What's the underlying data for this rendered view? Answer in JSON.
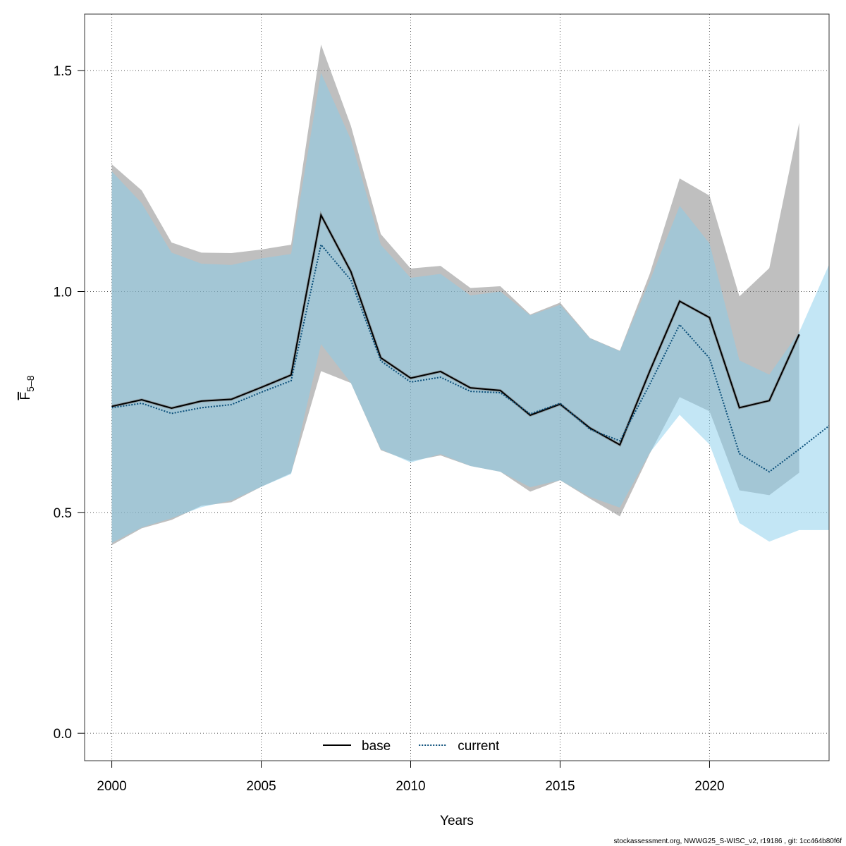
{
  "chart_data": {
    "type": "line",
    "xlabel": "Years",
    "ylabel": {
      "main": "F",
      "sub": "5–8"
    },
    "footer": "stockassessment.org, NWWG25_S-WISC_v2, r19186 , git: 1cc464b80f6f",
    "x": [
      2000,
      2001,
      2002,
      2003,
      2004,
      2005,
      2006,
      2007,
      2008,
      2009,
      2010,
      2011,
      2012,
      2013,
      2014,
      2015,
      2016,
      2017,
      2018,
      2019,
      2020,
      2021,
      2022,
      2023,
      2024
    ],
    "series": [
      {
        "name": "base",
        "color": "#000000",
        "band_color": "#808080",
        "dash": "solid",
        "values": [
          0.74,
          0.755,
          0.736,
          0.752,
          0.756,
          0.783,
          0.811,
          1.173,
          1.045,
          0.85,
          0.804,
          0.819,
          0.782,
          0.776,
          0.72,
          0.745,
          0.691,
          0.653,
          0.82,
          0.978,
          0.941,
          0.737,
          0.753,
          0.903,
          null
        ],
        "low": [
          0.426,
          0.464,
          0.483,
          0.515,
          0.523,
          0.558,
          0.589,
          0.82,
          0.793,
          0.641,
          0.616,
          0.629,
          0.605,
          0.592,
          0.547,
          0.573,
          0.531,
          0.491,
          0.633,
          0.761,
          0.729,
          0.55,
          0.539,
          0.59,
          null
        ],
        "high": [
          1.288,
          1.229,
          1.111,
          1.088,
          1.087,
          1.095,
          1.106,
          1.559,
          1.375,
          1.13,
          1.052,
          1.058,
          1.008,
          1.012,
          0.948,
          0.975,
          0.895,
          0.866,
          1.04,
          1.256,
          1.217,
          0.989,
          1.053,
          1.382,
          null
        ]
      },
      {
        "name": "current",
        "color": "#0b4f7a",
        "band_color": "#87ceeb",
        "dash": "dotted",
        "values": [
          0.737,
          0.747,
          0.724,
          0.737,
          0.744,
          0.772,
          0.798,
          1.106,
          1.026,
          0.843,
          0.795,
          0.806,
          0.774,
          0.771,
          0.723,
          0.747,
          0.688,
          0.662,
          0.79,
          0.925,
          0.849,
          0.633,
          0.592,
          0.643,
          0.696
        ],
        "low": [
          0.431,
          0.466,
          0.487,
          0.512,
          0.527,
          0.558,
          0.587,
          0.881,
          0.793,
          0.643,
          0.613,
          0.632,
          0.605,
          0.592,
          0.557,
          0.573,
          0.535,
          0.511,
          0.635,
          0.721,
          0.654,
          0.476,
          0.434,
          0.46,
          0.46
        ],
        "high": [
          1.272,
          1.2,
          1.088,
          1.063,
          1.06,
          1.075,
          1.085,
          1.495,
          1.344,
          1.106,
          1.031,
          1.04,
          0.991,
          1.0,
          0.946,
          0.97,
          0.894,
          0.865,
          1.024,
          1.194,
          1.109,
          0.844,
          0.812,
          0.908,
          1.061
        ]
      }
    ],
    "xlim": [
      1999.09,
      2024
    ],
    "ylim": [
      -0.062,
      1.628
    ],
    "xticks": [
      2000,
      2005,
      2010,
      2015,
      2020
    ],
    "yticks": [
      {
        "value": 0,
        "label": "0.0"
      },
      {
        "value": 0.5,
        "label": "0.5"
      },
      {
        "value": 1,
        "label": "1.0"
      },
      {
        "value": 1.5,
        "label": "1.5"
      }
    ],
    "grid": true,
    "legend": "bottom"
  }
}
